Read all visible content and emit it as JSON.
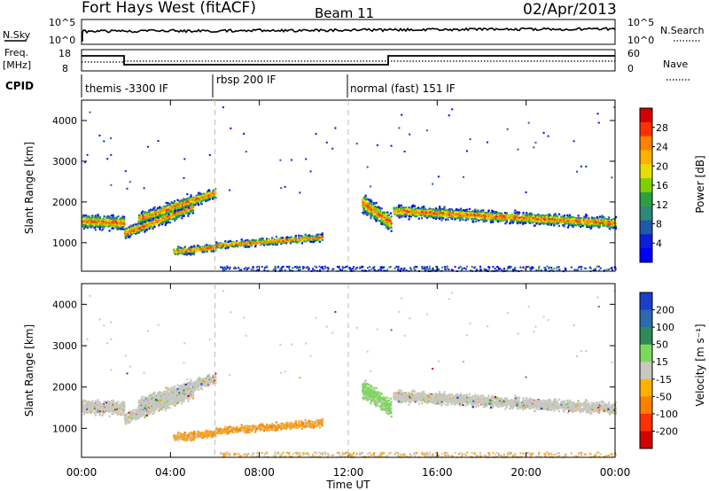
{
  "header": {
    "station": "Fort Hays West (fitACF)",
    "beam": "Beam 11",
    "date": "02/Apr/2013"
  },
  "top_panels": {
    "nsky_label": "N.Sky",
    "nsky_ticks": [
      "10^5",
      "10^0"
    ],
    "nsearch_label": "N.Search",
    "nsearch_ticks": [
      "10^5",
      "10^0"
    ],
    "freq_label": "Freq.",
    "freq_unit": "[MHz]",
    "freq_ticks": [
      "18",
      "8"
    ],
    "nave_label": "Nave",
    "nave_ticks": [
      "60",
      "0"
    ],
    "cpid_label": "CPID",
    "cpid_segments": [
      {
        "start": 0,
        "end": 6,
        "label": "themis -3300 IF"
      },
      {
        "start": 6,
        "end": 12,
        "label": "rbsp 200 IF"
      },
      {
        "start": 12,
        "end": 24,
        "label": "normal (fast) 151 IF"
      }
    ]
  },
  "chart_data": [
    {
      "type": "heatmap",
      "name": "power-panel",
      "ylabel": "Slant Range [km]",
      "ylim": [
        300,
        4500
      ],
      "yticks": [
        1000,
        2000,
        3000,
        4000
      ],
      "xlim": [
        0,
        24
      ],
      "colorbar": {
        "label": "Power [dB]",
        "ticks": [
          "28",
          "24",
          "20",
          "16",
          "12",
          "8",
          "4"
        ],
        "colors": [
          "#d20000",
          "#ff3000",
          "#ff8000",
          "#ffb000",
          "#e8dd00",
          "#7fd000",
          "#2aa040",
          "#2d8a78",
          "#1f5aa8",
          "#0a1edc",
          "#0000ff"
        ]
      }
    },
    {
      "type": "heatmap",
      "name": "velocity-panel",
      "ylabel": "Slant Range [km]",
      "ylim": [
        300,
        4500
      ],
      "yticks": [
        1000,
        2000,
        3000,
        4000
      ],
      "xlim": [
        0,
        24
      ],
      "colorbar": {
        "label": "Velocity [m s⁻¹]",
        "ticks": [
          "200",
          "100",
          "50",
          "15",
          "-15",
          "-50",
          "-100",
          "-200"
        ],
        "colors": [
          "#1a3fcc",
          "#2a6ab0",
          "#2f8a5a",
          "#7cd85c",
          "#c8c8c0",
          "#ffb000",
          "#ff8000",
          "#ff3000",
          "#d20000"
        ]
      },
      "xticks": [
        "00:00",
        "04:00",
        "08:00",
        "12:00",
        "16:00",
        "20:00",
        "00:00"
      ],
      "xlabel": "Time UT"
    }
  ],
  "scatter_bands": [
    {
      "t0": 0.0,
      "t1": 1.9,
      "r0": 1550,
      "r1": 1500,
      "w": 380,
      "p": "mix",
      "v": "grey"
    },
    {
      "t0": 1.9,
      "t1": 5.0,
      "r0": 1250,
      "r1": 1900,
      "w": 330,
      "p": "mix",
      "v": "grey"
    },
    {
      "t0": 2.5,
      "t1": 6.0,
      "r0": 1600,
      "r1": 2250,
      "w": 320,
      "p": "mix",
      "v": "grey"
    },
    {
      "t0": 4.1,
      "t1": 6.0,
      "r0": 800,
      "r1": 900,
      "w": 220,
      "p": "mix",
      "v": "orange"
    },
    {
      "t0": 6.0,
      "t1": 10.8,
      "r0": 950,
      "r1": 1150,
      "w": 200,
      "p": "mix",
      "v": "orange"
    },
    {
      "t0": 12.6,
      "t1": 13.9,
      "r0": 2000,
      "r1": 1500,
      "w": 500,
      "p": "mix",
      "v": "green"
    },
    {
      "t0": 14.0,
      "t1": 24.0,
      "r0": 1800,
      "r1": 1500,
      "w": 320,
      "p": "mix",
      "v": "grey"
    }
  ]
}
